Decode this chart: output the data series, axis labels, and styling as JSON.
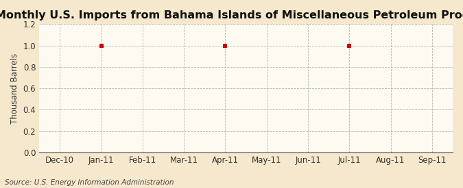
{
  "title": "Monthly U.S. Imports from Bahama Islands of Miscellaneous Petroleum Products",
  "ylabel": "Thousand Barrels",
  "source": "Source: U.S. Energy Information Administration",
  "background_color": "#f5e8cc",
  "plot_background_color": "#fdfaf2",
  "grid_color": "#999999",
  "x_tick_labels": [
    "Dec-10",
    "Jan-11",
    "Feb-11",
    "Mar-11",
    "Apr-11",
    "May-11",
    "Jun-11",
    "Jul-11",
    "Aug-11",
    "Sep-11"
  ],
  "data_points": {
    "Jan-11": 1.0,
    "Apr-11": 1.0,
    "Jul-11": 1.0
  },
  "ylim": [
    0.0,
    1.2
  ],
  "yticks": [
    0.0,
    0.2,
    0.4,
    0.6,
    0.8,
    1.0,
    1.2
  ],
  "marker_color": "#cc0000",
  "marker_size": 4,
  "title_fontsize": 11.5,
  "axis_fontsize": 8.5,
  "ylabel_fontsize": 8.5,
  "source_fontsize": 7.5
}
